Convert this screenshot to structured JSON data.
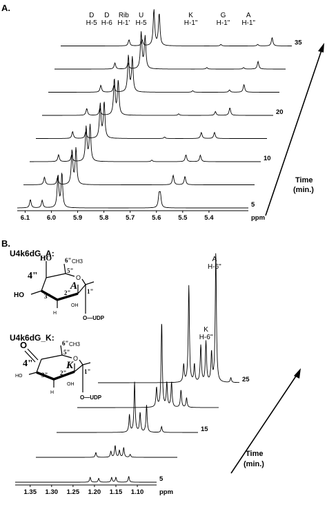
{
  "panels": {
    "a": {
      "label": "A.",
      "time_label_1": "Time",
      "time_label_2": "(min.)",
      "peak_labels": [
        {
          "l1": "D",
          "l2": "H-5",
          "ppm": 5.855
        },
        {
          "l1": "D",
          "l2": "H-6",
          "ppm": 5.81
        },
        {
          "l1": "Rib",
          "l2": "H-1'",
          "ppm": 5.785
        },
        {
          "l1": "U",
          "l2": "H-5",
          "ppm": 5.745
        },
        {
          "l1": "K",
          "l2": "H-1\"",
          "ppm": 5.49
        },
        {
          "l1": "G",
          "l2": "H-1\"",
          "ppm": 5.38
        },
        {
          "l1": "A",
          "l2": "H-1\"",
          "ppm": 5.31
        }
      ]
    },
    "b": {
      "label": "B.",
      "compound_a": "U4k6dG_A:",
      "compound_k": "U4k6dG_K:",
      "time_label_1": "Time",
      "time_label_2": "(min.)",
      "peak_labels": [
        {
          "l1": "A",
          "l2": "H-6\"",
          "ppm": 1.11
        },
        {
          "l1": "K",
          "l2": "H-6\"",
          "ppm": 1.133
        }
      ],
      "struct_a": {
        "c4": "4\"",
        "c3": "3\"",
        "c2": "2\"",
        "c1": "1\"",
        "c5": "5\"",
        "c6": "6\"",
        "me": "CH3",
        "ring": "A",
        "ho_top": "HO",
        "ho_left": "HO",
        "oh": "OH",
        "udp": "O—UDP",
        "h": "H",
        "o": "O"
      },
      "struct_k": {
        "c4": "4\"",
        "c3": "3\"",
        "c2": "2\"",
        "c1": "1\"",
        "c5": "5\"",
        "c6": "6\"",
        "me": "CH3",
        "ring": "K",
        "o_keto": "O",
        "ho": "HO",
        "oh": "OH",
        "udp": "O—UDP",
        "h": "H",
        "o": "O"
      }
    }
  },
  "chart_data": [
    {
      "type": "line",
      "title": "",
      "xlabel": "ppm",
      "ylabel": "",
      "xlim": [
        6.13,
        5.25
      ],
      "x_reversed": true,
      "x_ticks": [
        "6.1",
        "6.0",
        "5.9",
        "5.8",
        "5.7",
        "5.6",
        "5.5",
        "5.4",
        "ppm"
      ],
      "series": [
        {
          "time": "5",
          "label_shown": true,
          "peaks": [
            {
              "ppm": 6.08,
              "h": 0.22
            },
            {
              "ppm": 6.035,
              "h": 0.2
            },
            {
              "ppm": 5.975,
              "h": 0.85
            },
            {
              "ppm": 5.96,
              "h": 0.9
            },
            {
              "ppm": 5.59,
              "h": 0.32
            },
            {
              "ppm": 5.585,
              "h": 0.32
            }
          ]
        },
        {
          "time": "",
          "label_shown": false,
          "peaks": [
            {
              "ppm": 6.05,
              "h": 0.2
            },
            {
              "ppm": 6.0,
              "h": 0.2
            },
            {
              "ppm": 5.945,
              "h": 0.9
            },
            {
              "ppm": 5.93,
              "h": 0.95
            },
            {
              "ppm": 5.56,
              "h": 0.25
            },
            {
              "ppm": 5.515,
              "h": 0.22
            }
          ]
        },
        {
          "time": "10",
          "label_shown": true,
          "peaks": [
            {
              "ppm": 6.02,
              "h": 0.18
            },
            {
              "ppm": 5.97,
              "h": 0.18
            },
            {
              "ppm": 5.915,
              "h": 0.9
            },
            {
              "ppm": 5.9,
              "h": 0.95
            },
            {
              "ppm": 5.665,
              "h": 0.04
            },
            {
              "ppm": 5.535,
              "h": 0.18
            },
            {
              "ppm": 5.48,
              "h": 0.17
            }
          ]
        },
        {
          "time": "",
          "label_shown": false,
          "peaks": [
            {
              "ppm": 5.99,
              "h": 0.18
            },
            {
              "ppm": 5.94,
              "h": 0.18
            },
            {
              "ppm": 5.885,
              "h": 0.9
            },
            {
              "ppm": 5.87,
              "h": 0.95
            },
            {
              "ppm": 5.64,
              "h": 0.04
            },
            {
              "ppm": 5.5,
              "h": 0.16
            },
            {
              "ppm": 5.45,
              "h": 0.16
            }
          ]
        },
        {
          "time": "20",
          "label_shown": true,
          "peaks": [
            {
              "ppm": 5.96,
              "h": 0.18
            },
            {
              "ppm": 5.91,
              "h": 0.18
            },
            {
              "ppm": 5.855,
              "h": 0.95
            },
            {
              "ppm": 5.84,
              "h": 0.9
            },
            {
              "ppm": 5.61,
              "h": 0.04
            },
            {
              "ppm": 5.47,
              "h": 0.1
            },
            {
              "ppm": 5.415,
              "h": 0.2
            }
          ]
        },
        {
          "time": "",
          "label_shown": false,
          "peaks": [
            {
              "ppm": 5.93,
              "h": 0.18
            },
            {
              "ppm": 5.88,
              "h": 0.18
            },
            {
              "ppm": 5.825,
              "h": 0.95
            },
            {
              "ppm": 5.81,
              "h": 0.9
            },
            {
              "ppm": 5.58,
              "h": 0.04
            },
            {
              "ppm": 5.44,
              "h": 0.06
            },
            {
              "ppm": 5.385,
              "h": 0.2
            }
          ]
        },
        {
          "time": "",
          "label_shown": false,
          "peaks": [
            {
              "ppm": 5.9,
              "h": 0.16
            },
            {
              "ppm": 5.85,
              "h": 0.16
            },
            {
              "ppm": 5.8,
              "h": 0.95
            },
            {
              "ppm": 5.785,
              "h": 0.85
            },
            {
              "ppm": 5.55,
              "h": 0.04
            },
            {
              "ppm": 5.41,
              "h": 0.04
            },
            {
              "ppm": 5.355,
              "h": 0.2
            }
          ]
        },
        {
          "time": "35",
          "label_shown": true,
          "peaks": [
            {
              "ppm": 5.87,
              "h": 0.16
            },
            {
              "ppm": 5.82,
              "h": 0.16
            },
            {
              "ppm": 5.775,
              "h": 0.95
            },
            {
              "ppm": 5.755,
              "h": 0.85
            },
            {
              "ppm": 5.52,
              "h": 0.04
            },
            {
              "ppm": 5.38,
              "h": 0.04
            },
            {
              "ppm": 5.325,
              "h": 0.22
            }
          ]
        }
      ]
    },
    {
      "type": "line",
      "title": "",
      "xlabel": "ppm",
      "ylabel": "",
      "xlim": [
        1.385,
        1.055
      ],
      "x_reversed": true,
      "x_ticks": [
        "1.35",
        "1.30",
        "1.25",
        "1.20",
        "1.15",
        "1.10",
        "ppm"
      ],
      "series": [
        {
          "time": "5",
          "label_shown": true,
          "peaks": [
            {
              "ppm": 1.21,
              "h": 0.05
            },
            {
              "ppm": 1.19,
              "h": 0.04
            },
            {
              "ppm": 1.16,
              "h": 0.05
            },
            {
              "ppm": 1.15,
              "h": 0.05
            },
            {
              "ppm": 1.12,
              "h": 0.06
            }
          ]
        },
        {
          "time": "",
          "label_shown": false,
          "peaks": [
            {
              "ppm": 1.245,
              "h": 0.05
            },
            {
              "ppm": 1.21,
              "h": 0.06
            },
            {
              "ppm": 1.2,
              "h": 0.12
            },
            {
              "ppm": 1.19,
              "h": 0.07
            },
            {
              "ppm": 1.18,
              "h": 0.1
            },
            {
              "ppm": 1.165,
              "h": 0.03
            }
          ]
        },
        {
          "time": "15",
          "label_shown": true,
          "peaks": [
            {
              "ppm": 1.215,
              "h": 0.18
            },
            {
              "ppm": 1.203,
              "h": 0.52
            },
            {
              "ppm": 1.19,
              "h": 0.2
            },
            {
              "ppm": 1.175,
              "h": 0.28
            },
            {
              "ppm": 1.14,
              "h": 0.06
            }
          ]
        },
        {
          "time": "",
          "label_shown": false,
          "peaks": [
            {
              "ppm": 1.2,
              "h": 0.2
            },
            {
              "ppm": 1.188,
              "h": 0.88
            },
            {
              "ppm": 1.176,
              "h": 0.25
            },
            {
              "ppm": 1.165,
              "h": 0.26
            },
            {
              "ppm": 1.143,
              "h": 0.18
            },
            {
              "ppm": 1.13,
              "h": 0.1
            }
          ]
        },
        {
          "time": "25",
          "label_shown": true,
          "peaks": [
            {
              "ppm": 1.185,
              "h": 0.18
            },
            {
              "ppm": 1.173,
              "h": 1.0
            },
            {
              "ppm": 1.16,
              "h": 0.18
            },
            {
              "ppm": 1.145,
              "h": 0.38
            },
            {
              "ppm": 1.133,
              "h": 0.42
            },
            {
              "ppm": 1.12,
              "h": 0.3
            },
            {
              "ppm": 1.11,
              "h": 1.35
            },
            {
              "ppm": 1.075,
              "h": 0.05
            }
          ]
        }
      ]
    }
  ]
}
